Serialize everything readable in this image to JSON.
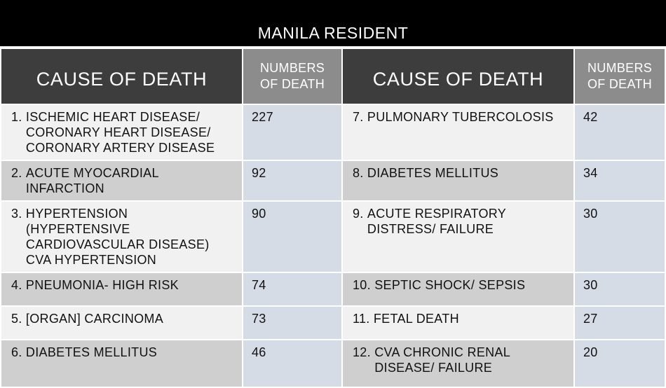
{
  "title": "MANILA RESIDENT",
  "headers": {
    "cause": "CAUSE OF DEATH",
    "numbers": [
      "NUMBERS",
      "OF DEATH"
    ]
  },
  "left": [
    {
      "num": "1. ",
      "text": "ISCHEMIC HEART DISEASE/ CORONARY HEART DISEASE/ CORONARY ARTERY DISEASE",
      "value": "227"
    },
    {
      "num": "2. ",
      "text": "ACUTE MYOCARDIAL INFARCTION",
      "value": "92"
    },
    {
      "num": "3. ",
      "text": "HYPERTENSION (HYPERTENSIVE CARDIOVASCULAR DISEASE) CVA HYPERTENSION",
      "value": "90"
    },
    {
      "num": "4. ",
      "text": "PNEUMONIA- HIGH RISK",
      "value": "74"
    },
    {
      "num": "5. ",
      "text": "[ORGAN] CARCINOMA",
      "value": "73"
    },
    {
      "num": "6. ",
      "text": "DIABETES MELLITUS",
      "value": "46"
    }
  ],
  "right": [
    {
      "num": "7. ",
      "text": "PULMONARY TUBERCOLOSIS",
      "value": "42"
    },
    {
      "num": "8. ",
      "text": "DIABETES MELLITUS",
      "value": "34"
    },
    {
      "num": "9. ",
      "text": "ACUTE RESPIRATORY DISTRESS/ FAILURE",
      "value": "30"
    },
    {
      "num": "10. ",
      "text": "SEPTIC SHOCK/ SEPSIS",
      "value": "30"
    },
    {
      "num": "11. ",
      "text": "FETAL DEATH",
      "value": "27"
    },
    {
      "num": "12. ",
      "text": "CVA CHRONIC RENAL DISEASE/ FAILURE",
      "value": "20"
    }
  ],
  "colors": {
    "title_bg": "#000000",
    "header_cause_bg": "#3d3d3d",
    "header_num_bg": "#8c8c8c",
    "row_light": "#f1f1f1",
    "row_dark": "#cfcfcf",
    "num_bg": "#d6dce5"
  }
}
